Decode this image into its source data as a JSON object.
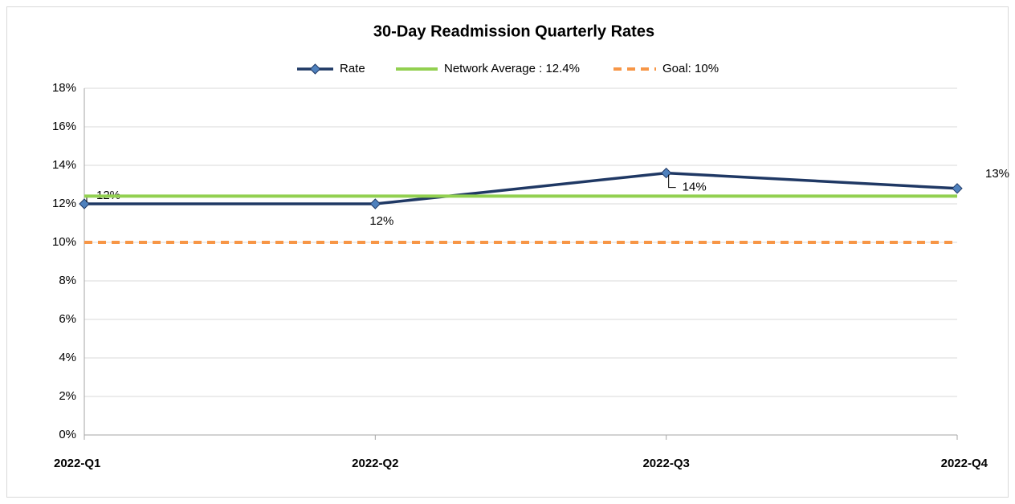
{
  "chart_data": {
    "type": "line",
    "title": "30-Day Readmission Quarterly Rates",
    "categories": [
      "2022-Q1",
      "2022-Q2",
      "2022-Q3",
      "2022-Q4"
    ],
    "series": [
      {
        "name": "Rate",
        "color": "#1f3864",
        "marker": "diamond",
        "marker_color": "#4f81bd",
        "line_style": "solid",
        "values": [
          12.0,
          12.0,
          13.6,
          12.8
        ],
        "value_labels": [
          "12%",
          "12%",
          "14%",
          "13%"
        ]
      },
      {
        "name": "Network Average : 12.4%",
        "color": "#92d050",
        "line_style": "solid",
        "values": [
          12.4,
          12.4,
          12.4,
          12.4
        ]
      },
      {
        "name": "Goal: 10%",
        "color": "#f79646",
        "line_style": "dashed",
        "values": [
          10,
          10,
          10,
          10
        ]
      }
    ],
    "ylim": [
      0,
      18
    ],
    "yticks": [
      {
        "value": 0,
        "label": "0%"
      },
      {
        "value": 2,
        "label": "2%"
      },
      {
        "value": 4,
        "label": "4%"
      },
      {
        "value": 6,
        "label": "6%"
      },
      {
        "value": 8,
        "label": "8%"
      },
      {
        "value": 10,
        "label": "10%"
      },
      {
        "value": 12,
        "label": "12%"
      },
      {
        "value": 14,
        "label": "14%"
      },
      {
        "value": 16,
        "label": "16%"
      },
      {
        "value": 18,
        "label": "18%"
      }
    ],
    "grid": true,
    "legend": "top"
  }
}
